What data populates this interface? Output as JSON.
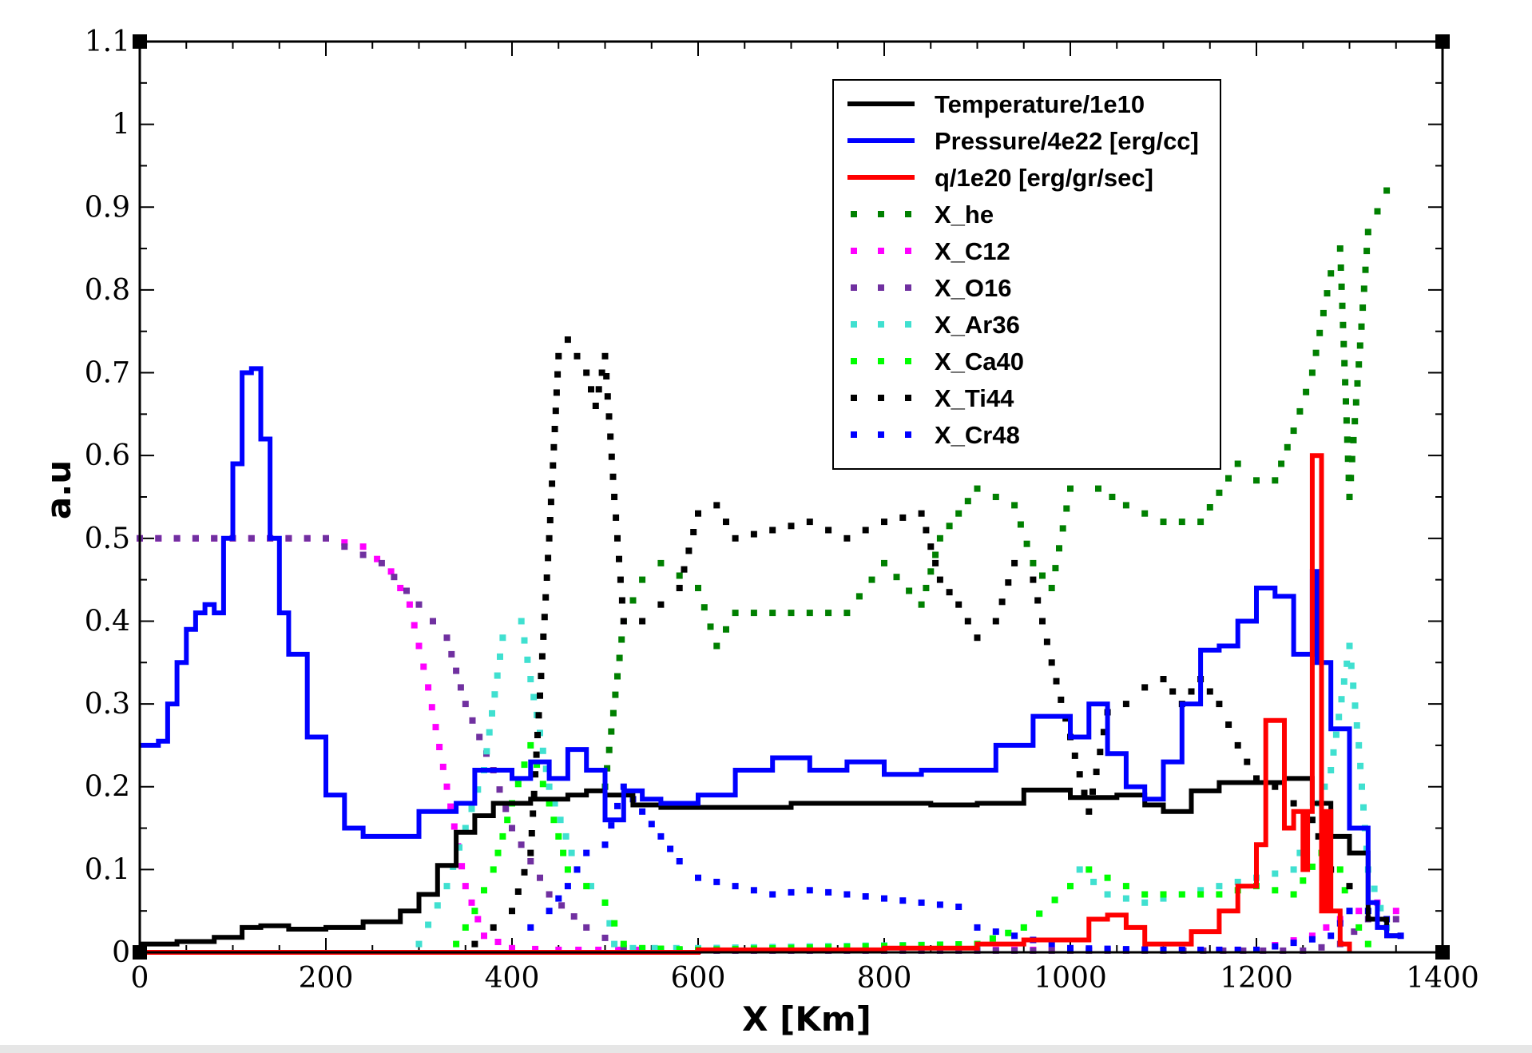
{
  "chart_data": {
    "type": "line",
    "xlabel": "X [Km]",
    "ylabel": "a.u",
    "xlim": [
      0,
      1400
    ],
    "ylim": [
      0,
      1.1
    ],
    "xticks": [
      "0",
      "200",
      "400",
      "600",
      "800",
      "1000",
      "1200",
      "1400"
    ],
    "yticks": [
      "0",
      "0.1",
      "0.2",
      "0.3",
      "0.4",
      "0.5",
      "0.6",
      "0.7",
      "0.8",
      "0.9",
      "1",
      "1.1"
    ],
    "legend_position": "top-right",
    "series": [
      {
        "name": "Temperature/1e10",
        "color": "#000000",
        "style": "solid",
        "x": [
          0,
          40,
          80,
          110,
          130,
          160,
          200,
          240,
          280,
          300,
          320,
          340,
          360,
          380,
          420,
          460,
          480,
          500,
          530,
          560,
          600,
          700,
          800,
          850,
          900,
          950,
          1000,
          1050,
          1080,
          1100,
          1130,
          1160,
          1200,
          1230,
          1260,
          1280,
          1300,
          1320,
          1340,
          1355
        ],
        "y": [
          0.01,
          0.013,
          0.018,
          0.03,
          0.032,
          0.028,
          0.03,
          0.037,
          0.05,
          0.07,
          0.105,
          0.145,
          0.165,
          0.18,
          0.185,
          0.19,
          0.195,
          0.19,
          0.178,
          0.175,
          0.175,
          0.18,
          0.18,
          0.178,
          0.18,
          0.196,
          0.187,
          0.19,
          0.178,
          0.17,
          0.195,
          0.205,
          0.205,
          0.21,
          0.18,
          0.14,
          0.12,
          0.04,
          0.02,
          0.02
        ]
      },
      {
        "name": "Pressure/4e22 [erg/cc]",
        "color": "#0000ff",
        "style": "solid",
        "x": [
          0,
          20,
          30,
          40,
          50,
          60,
          70,
          80,
          90,
          100,
          110,
          120,
          130,
          140,
          150,
          160,
          180,
          200,
          220,
          240,
          260,
          280,
          300,
          320,
          340,
          360,
          380,
          400,
          420,
          440,
          460,
          480,
          500,
          520,
          540,
          560,
          600,
          640,
          680,
          720,
          760,
          800,
          840,
          880,
          920,
          960,
          1000,
          1020,
          1040,
          1060,
          1080,
          1100,
          1120,
          1140,
          1160,
          1180,
          1200,
          1220,
          1240,
          1250,
          1260,
          1265,
          1280,
          1300,
          1320,
          1330,
          1340,
          1355
        ],
        "y": [
          0.25,
          0.255,
          0.3,
          0.35,
          0.39,
          0.41,
          0.42,
          0.41,
          0.5,
          0.59,
          0.7,
          0.705,
          0.62,
          0.5,
          0.41,
          0.36,
          0.26,
          0.19,
          0.15,
          0.14,
          0.14,
          0.14,
          0.17,
          0.17,
          0.18,
          0.22,
          0.22,
          0.21,
          0.23,
          0.21,
          0.245,
          0.22,
          0.16,
          0.195,
          0.185,
          0.18,
          0.19,
          0.22,
          0.235,
          0.22,
          0.23,
          0.215,
          0.22,
          0.22,
          0.25,
          0.285,
          0.26,
          0.3,
          0.24,
          0.2,
          0.185,
          0.23,
          0.3,
          0.365,
          0.37,
          0.4,
          0.44,
          0.43,
          0.36,
          0.36,
          0.46,
          0.35,
          0.27,
          0.15,
          0.06,
          0.03,
          0.02,
          0.02
        ]
      },
      {
        "name": "q/1e20 [erg/gr/sec]",
        "color": "#ff0000",
        "style": "solid",
        "x": [
          0,
          400,
          600,
          800,
          900,
          950,
          1000,
          1020,
          1040,
          1060,
          1080,
          1100,
          1130,
          1160,
          1180,
          1200,
          1210,
          1220,
          1230,
          1240,
          1250,
          1255,
          1260,
          1265,
          1270,
          1275,
          1280,
          1290,
          1300
        ],
        "y": [
          0,
          0,
          0.003,
          0.005,
          0.01,
          0.015,
          0.015,
          0.04,
          0.045,
          0.03,
          0.01,
          0.01,
          0.025,
          0.05,
          0.08,
          0.13,
          0.28,
          0.28,
          0.15,
          0.17,
          0.1,
          0.17,
          0.6,
          0.6,
          0.05,
          0.17,
          0.05,
          0.01,
          0
        ]
      },
      {
        "name": "X_he",
        "color": "#008000",
        "style": "dotted",
        "x": [
          500,
          520,
          540,
          560,
          600,
          620,
          640,
          680,
          720,
          760,
          800,
          840,
          860,
          880,
          900,
          940,
          960,
          980,
          1000,
          1030,
          1060,
          1100,
          1140,
          1180,
          1200,
          1220,
          1240,
          1260,
          1280,
          1290,
          1300,
          1320,
          1340
        ],
        "y": [
          0.2,
          0.4,
          0.45,
          0.47,
          0.44,
          0.37,
          0.41,
          0.41,
          0.41,
          0.41,
          0.47,
          0.42,
          0.5,
          0.53,
          0.56,
          0.54,
          0.47,
          0.44,
          0.56,
          0.56,
          0.54,
          0.52,
          0.52,
          0.59,
          0.57,
          0.57,
          0.63,
          0.7,
          0.82,
          0.85,
          0.55,
          0.87,
          0.92
        ]
      },
      {
        "name": "X_C12",
        "color": "#ff00ff",
        "style": "dotted",
        "x": [
          0,
          100,
          160,
          200,
          240,
          270,
          290,
          310,
          330,
          350,
          370,
          400,
          450,
          600,
          900,
          1200,
          1260,
          1290,
          1310,
          1330,
          1350
        ],
        "y": [
          0.5,
          0.5,
          0.5,
          0.5,
          0.49,
          0.46,
          0.42,
          0.32,
          0.2,
          0.08,
          0.02,
          0.005,
          0.003,
          0.003,
          0.003,
          0.003,
          0.02,
          0.04,
          0.05,
          0.06,
          0.05
        ]
      },
      {
        "name": "X_O16",
        "color": "#7030a0",
        "style": "dotted",
        "x": [
          0,
          100,
          160,
          200,
          220,
          240,
          260,
          300,
          330,
          350,
          380,
          400,
          440,
          480,
          520,
          600,
          900,
          1100,
          1250,
          1290,
          1320,
          1350
        ],
        "y": [
          0.5,
          0.5,
          0.5,
          0.5,
          0.49,
          0.48,
          0.47,
          0.42,
          0.38,
          0.3,
          0.22,
          0.15,
          0.07,
          0.03,
          0.005,
          0.002,
          0.002,
          0.002,
          0.002,
          0.01,
          0.04,
          0.04
        ]
      },
      {
        "name": "X_Ar36",
        "color": "#40e0d0",
        "style": "dotted",
        "x": [
          300,
          330,
          350,
          370,
          390,
          410,
          420,
          440,
          470,
          500,
          510,
          530,
          600,
          900,
          950,
          1000,
          1010,
          1040,
          1080,
          1120,
          1160,
          1200,
          1240,
          1280,
          1300,
          1310,
          1320,
          1340
        ],
        "y": [
          0.01,
          0.08,
          0.15,
          0.22,
          0.38,
          0.4,
          0.33,
          0.2,
          0.1,
          0.06,
          0.01,
          0.005,
          0.005,
          0.01,
          0.03,
          0.08,
          0.1,
          0.07,
          0.06,
          0.07,
          0.08,
          0.09,
          0.1,
          0.22,
          0.37,
          0.25,
          0.1,
          0.03
        ]
      },
      {
        "name": "X_Ca40",
        "color": "#00ff00",
        "style": "dotted",
        "x": [
          340,
          360,
          380,
          400,
          420,
          440,
          460,
          480,
          500,
          520,
          540,
          600,
          900,
          950,
          1000,
          1020,
          1040,
          1080,
          1120,
          1160,
          1200,
          1240,
          1270,
          1290,
          1300,
          1320
        ],
        "y": [
          0.01,
          0.05,
          0.1,
          0.18,
          0.25,
          0.18,
          0.1,
          0.08,
          0.06,
          0.01,
          0.005,
          0.003,
          0.01,
          0.03,
          0.08,
          0.1,
          0.09,
          0.07,
          0.07,
          0.07,
          0.08,
          0.07,
          0.12,
          0.1,
          0.05,
          0.01
        ]
      },
      {
        "name": "X_Ti44",
        "color": "#000000",
        "style": "dotted",
        "x": [
          360,
          380,
          400,
          420,
          440,
          450,
          460,
          480,
          490,
          500,
          510,
          520,
          540,
          560,
          580,
          600,
          620,
          640,
          680,
          720,
          760,
          800,
          840,
          860,
          880,
          900,
          920,
          940,
          960,
          980,
          1000,
          1020,
          1040,
          1060,
          1080,
          1100,
          1120,
          1140,
          1160,
          1180,
          1200,
          1220,
          1240,
          1260,
          1280,
          1300
        ],
        "y": [
          0.01,
          0.03,
          0.05,
          0.12,
          0.5,
          0.72,
          0.74,
          0.7,
          0.66,
          0.72,
          0.55,
          0.4,
          0.4,
          0.42,
          0.44,
          0.53,
          0.54,
          0.5,
          0.51,
          0.52,
          0.5,
          0.52,
          0.53,
          0.45,
          0.42,
          0.38,
          0.4,
          0.47,
          0.45,
          0.35,
          0.26,
          0.17,
          0.29,
          0.3,
          0.32,
          0.33,
          0.3,
          0.33,
          0.3,
          0.25,
          0.21,
          0.2,
          0.18,
          0.16,
          0.1,
          0.08
        ]
      },
      {
        "name": "X_Cr48",
        "color": "#0000ff",
        "style": "dotted",
        "x": [
          420,
          440,
          460,
          480,
          500,
          520,
          540,
          560,
          580,
          600,
          640,
          680,
          720,
          760,
          800,
          840,
          880,
          900,
          1000,
          1100,
          1200,
          1280,
          1300,
          1320,
          1340,
          1355
        ],
        "y": [
          0.03,
          0.05,
          0.08,
          0.12,
          0.13,
          0.2,
          0.17,
          0.14,
          0.11,
          0.09,
          0.08,
          0.07,
          0.075,
          0.07,
          0.065,
          0.06,
          0.055,
          0.03,
          0.005,
          0.003,
          0.003,
          0.02,
          0.05,
          0.05,
          0.04,
          0.02
        ]
      }
    ]
  }
}
